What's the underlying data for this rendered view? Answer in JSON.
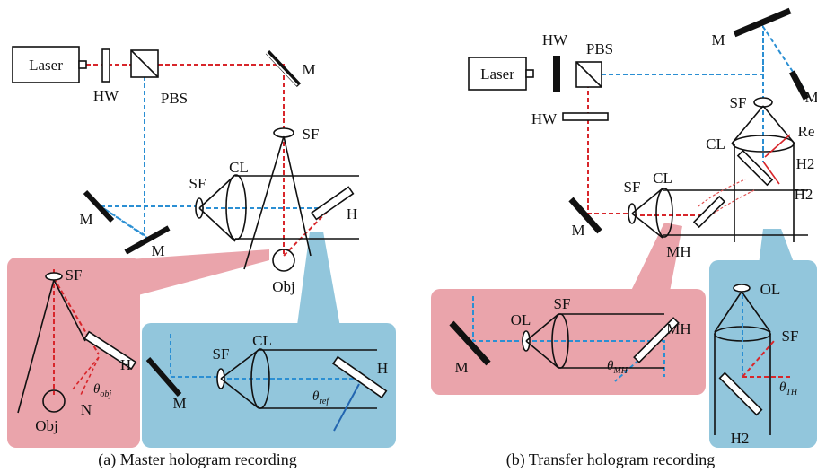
{
  "panel_a": {
    "caption": "(a) Master hologram recording",
    "labels": [
      "Laser",
      "HW",
      "PBS",
      "M",
      "SF",
      "SF",
      "CL",
      "H",
      "M",
      "M",
      "Obj"
    ],
    "inset_object": {
      "labels": [
        "SF",
        "H",
        "Obj",
        "N"
      ],
      "angle": {
        "symbol": "θ",
        "subscript": "obj"
      }
    },
    "inset_reference": {
      "labels": [
        "M",
        "SF",
        "CL",
        "H"
      ],
      "angle": {
        "symbol": "θ",
        "subscript": "ref"
      }
    }
  },
  "panel_b": {
    "caption": "(b) Transfer hologram recording",
    "labels": [
      "HW",
      "PBS",
      "M",
      "Laser",
      "M",
      "SF",
      "Re",
      "HW",
      "CL",
      "H2",
      "SF",
      "CL",
      "H2",
      "M",
      "MH"
    ],
    "inset_master": {
      "labels": [
        "SF",
        "OL",
        "MH",
        "M"
      ],
      "angle": {
        "symbol": "θ",
        "subscript": "MH"
      }
    },
    "inset_transfer": {
      "labels": [
        "OL",
        "SF",
        "H2"
      ],
      "angle": {
        "symbol": "θ",
        "subscript": "TH"
      }
    }
  }
}
